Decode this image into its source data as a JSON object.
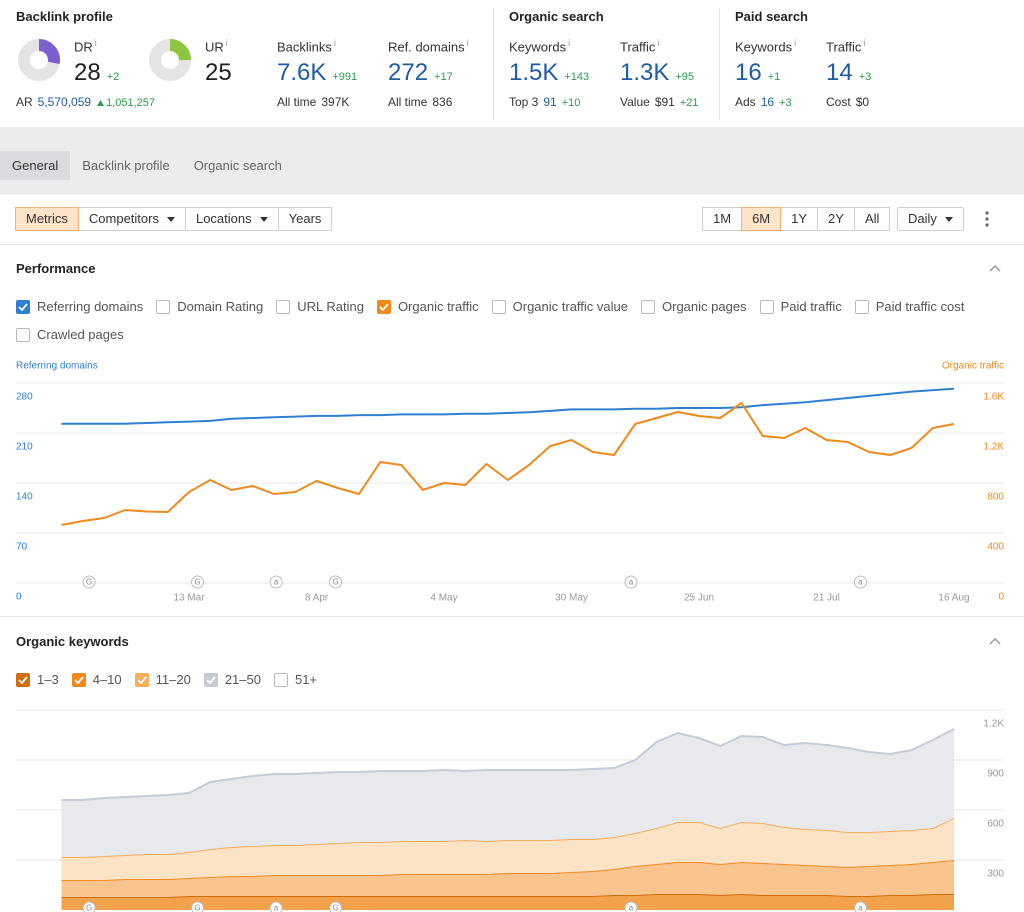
{
  "header": {
    "info_icon": "i",
    "sections": [
      {
        "title": "Backlink profile",
        "metrics": [
          {
            "label": "DR",
            "value": 28,
            "change": "+2",
            "range": [
              0,
              100
            ],
            "color": "#7a5fcf"
          },
          {
            "label": "UR",
            "value": 25,
            "range": [
              0,
              100
            ],
            "color": "#8cc63e"
          },
          {
            "label": "Backlinks",
            "value": "7.6K",
            "change": "+991",
            "sub_label": "All time",
            "sub_value": "397K"
          },
          {
            "label": "Ref. domains",
            "value": "272",
            "change": "+17",
            "sub_label": "All time",
            "sub_value": "836"
          }
        ],
        "ar": {
          "label": "AR",
          "value": "5,570,059",
          "change": "1,051,257"
        }
      },
      {
        "title": "Organic search",
        "metrics": [
          {
            "label": "Keywords",
            "value": "1.5K",
            "change": "+143",
            "sub_label": "Top 3",
            "sub_value": "91",
            "sub_change": "+10",
            "sub_value_color": "#1f5ca6"
          },
          {
            "label": "Traffic",
            "value": "1.3K",
            "change": "+95",
            "sub_label": "Value",
            "sub_value": "$91",
            "sub_change": "+21"
          }
        ]
      },
      {
        "title": "Paid search",
        "metrics": [
          {
            "label": "Keywords",
            "value": "16",
            "change": "+1",
            "sub_label": "Ads",
            "sub_value": "16",
            "sub_change": "+3",
            "sub_value_color": "#1f5ca6"
          },
          {
            "label": "Traffic",
            "value": "14",
            "change": "+3",
            "sub_label": "Cost",
            "sub_value": "$0"
          }
        ]
      }
    ]
  },
  "tabs": {
    "items": [
      "General",
      "Backlink profile",
      "Organic search"
    ],
    "active": 0
  },
  "toolbar": {
    "views": [
      {
        "label": "Metrics"
      },
      {
        "label": "Competitors",
        "dropdown": true
      },
      {
        "label": "Locations",
        "dropdown": true
      },
      {
        "label": "Years"
      }
    ],
    "active_view": 0,
    "ranges": [
      "1M",
      "6M",
      "1Y",
      "2Y",
      "All"
    ],
    "active_range": 1,
    "interval": "Daily"
  },
  "performance": {
    "title": "Performance",
    "options": [
      {
        "label": "Referring domains",
        "checked": true,
        "color": "#2f80d1"
      },
      {
        "label": "Domain Rating",
        "checked": false
      },
      {
        "label": "URL Rating",
        "checked": false
      },
      {
        "label": "Organic traffic",
        "checked": true,
        "color": "#f08a1c"
      },
      {
        "label": "Organic traffic value",
        "checked": false
      },
      {
        "label": "Organic pages",
        "checked": false
      },
      {
        "label": "Paid traffic",
        "checked": false
      },
      {
        "label": "Paid traffic cost",
        "checked": false
      },
      {
        "label": "Crawled pages",
        "checked": false
      }
    ]
  },
  "organic_keywords": {
    "title": "Organic keywords"
  },
  "chart_data": [
    {
      "type": "line",
      "y_label": "Referring domains",
      "y2_label": "Organic traffic",
      "xlim": [
        0,
        42
      ],
      "xticks": [
        {
          "value": 6,
          "label": "13 Mar"
        },
        {
          "value": 12,
          "label": "8 Apr"
        },
        {
          "value": 18,
          "label": "4 May"
        },
        {
          "value": 24,
          "label": "30 May"
        },
        {
          "value": 30,
          "label": "25 Jun"
        },
        {
          "value": 36,
          "label": "21 Jul"
        },
        {
          "value": 42,
          "label": "16 Aug"
        }
      ],
      "ylim": [
        0,
        280
      ],
      "yticks": [
        0,
        70,
        140,
        210,
        280
      ],
      "y2lim": [
        0,
        1600
      ],
      "y2ticks": [
        0,
        400,
        800,
        {
          "value": 1200,
          "label": "1.2K"
        },
        {
          "value": 1600,
          "label": "1.6K"
        }
      ],
      "grid": true,
      "annotations": [
        {
          "x": 1.3,
          "label": "G"
        },
        {
          "x": 6.4,
          "label": "G"
        },
        {
          "x": 10.1,
          "label": "a"
        },
        {
          "x": 12.9,
          "label": "G"
        },
        {
          "x": 26.8,
          "label": "a"
        },
        {
          "x": 37.6,
          "label": "a"
        }
      ],
      "series": [
        {
          "color": "#2f80d1",
          "values": [
            223,
            223,
            223,
            223,
            224,
            225,
            226,
            227,
            230,
            231,
            232,
            233,
            234,
            234,
            235,
            235,
            236,
            236,
            236,
            237,
            237,
            238,
            239,
            241,
            243,
            243,
            243,
            244,
            244,
            245,
            245,
            245,
            246,
            249,
            251,
            253,
            256,
            259,
            262,
            265,
            268,
            270,
            272
          ]
        },
        {
          "color": "#f08a1c",
          "axis": "y2",
          "values": [
            464,
            496,
            520,
            584,
            572,
            568,
            728,
            824,
            744,
            776,
            712,
            728,
            816,
            760,
            712,
            968,
            944,
            744,
            800,
            784,
            952,
            824,
            944,
            1096,
            1144,
            1048,
            1024,
            1272,
            1320,
            1368,
            1336,
            1320,
            1440,
            1176,
            1160,
            1240,
            1144,
            1128,
            1048,
            1024,
            1080,
            1240,
            1272
          ]
        }
      ]
    },
    {
      "type": "stacked-area",
      "xlim": [
        0,
        42
      ],
      "ylim": [
        0,
        1200
      ],
      "yticks": [
        300,
        600,
        900,
        {
          "value": 1200,
          "label": "1.2K"
        }
      ],
      "grid": true,
      "annotations": [
        {
          "x": 1.3,
          "label": "G"
        },
        {
          "x": 6.4,
          "label": "G"
        },
        {
          "x": 10.1,
          "label": "a"
        },
        {
          "x": 12.9,
          "label": "G"
        },
        {
          "x": 26.8,
          "label": "a"
        },
        {
          "x": 37.6,
          "label": "a"
        }
      ],
      "series": [
        {
          "name": "1–3",
          "checked": true,
          "color": "#cf6e0c",
          "fill": "#f3a24c",
          "values": [
            78,
            78,
            78,
            78,
            78,
            78,
            84,
            84,
            84,
            84,
            84,
            84,
            84,
            84,
            84,
            84,
            84,
            84,
            84,
            84,
            84,
            84,
            84,
            84,
            84,
            84,
            90,
            90,
            96,
            96,
            96,
            90,
            96,
            90,
            90,
            90,
            90,
            84,
            84,
            90,
            90,
            96,
            96
          ]
        },
        {
          "name": "4–10",
          "checked": true,
          "color": "#f38a1e",
          "fill": "#f9c48e",
          "values": [
            102,
            102,
            102,
            108,
            108,
            108,
            108,
            114,
            120,
            120,
            126,
            126,
            126,
            126,
            126,
            126,
            132,
            132,
            132,
            132,
            132,
            138,
            138,
            138,
            144,
            150,
            156,
            174,
            180,
            192,
            192,
            186,
            192,
            192,
            186,
            180,
            174,
            174,
            180,
            180,
            186,
            192,
            204
          ]
        },
        {
          "name": "11–20",
          "checked": true,
          "color": "#f6ad5c",
          "fill": "#fde3c6",
          "values": [
            138,
            138,
            144,
            144,
            150,
            150,
            156,
            168,
            174,
            180,
            180,
            180,
            186,
            192,
            198,
            198,
            198,
            198,
            198,
            204,
            198,
            198,
            198,
            198,
            198,
            192,
            192,
            198,
            216,
            240,
            240,
            216,
            240,
            240,
            222,
            216,
            216,
            210,
            204,
            204,
            204,
            204,
            252
          ]
        },
        {
          "name": "21–50",
          "checked": true,
          "color": "#c5ccd6",
          "fill": "#e7e9ed",
          "values": [
            342,
            342,
            348,
            348,
            348,
            354,
            354,
            402,
            408,
            420,
            426,
            426,
            426,
            426,
            420,
            426,
            420,
            420,
            426,
            414,
            426,
            420,
            420,
            420,
            414,
            420,
            414,
            438,
            516,
            534,
            504,
            492,
            516,
            516,
            492,
            516,
            510,
            504,
            480,
            462,
            480,
            528,
            534
          ]
        }
      ],
      "hidden_series": [
        {
          "name": "51+",
          "checked": false
        }
      ]
    }
  ]
}
